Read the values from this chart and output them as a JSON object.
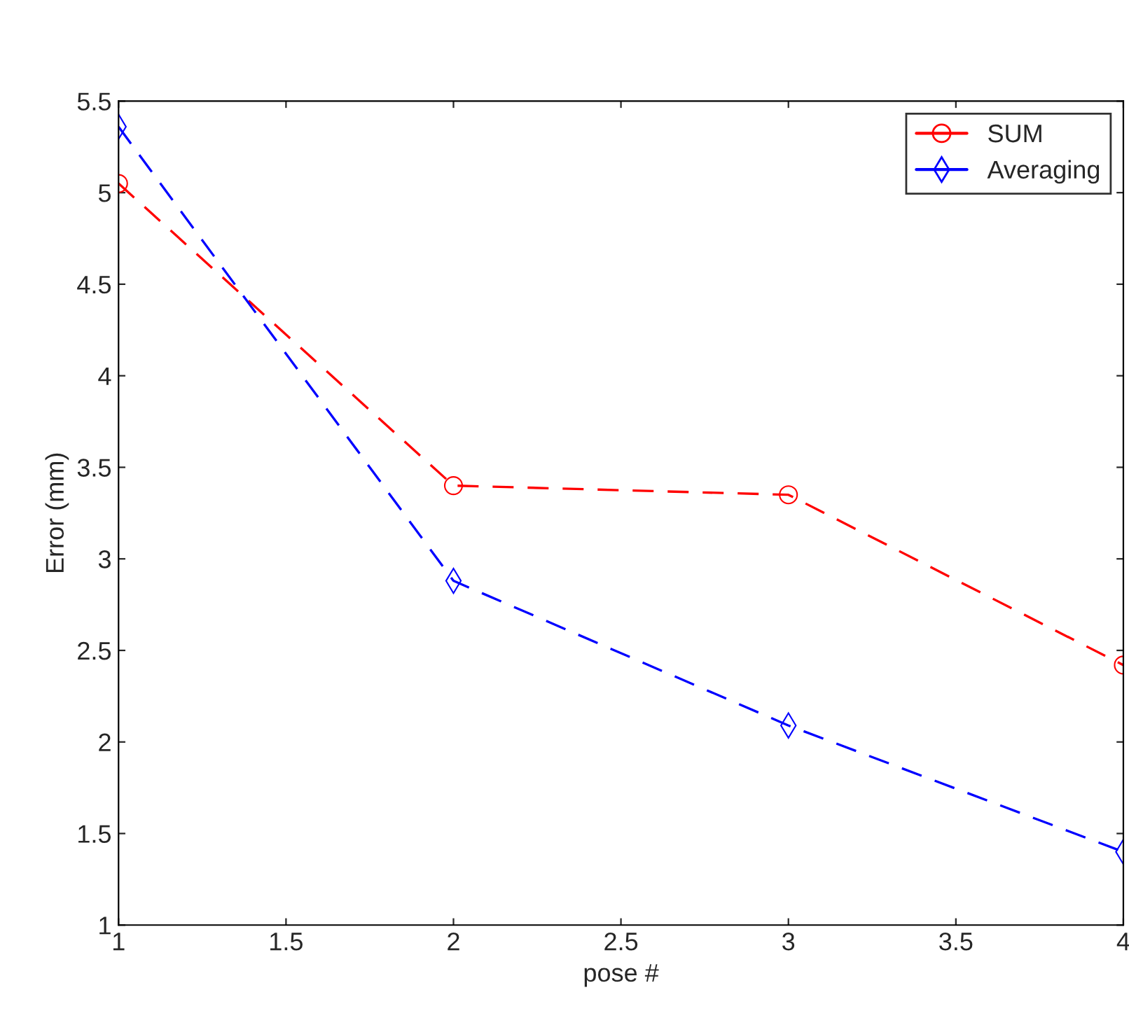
{
  "chart_data": {
    "type": "line",
    "xlabel": "pose #",
    "ylabel": "Error (mm)",
    "x": [
      1,
      2,
      3,
      4
    ],
    "series": [
      {
        "name": "SUM",
        "color": "#ff0000",
        "marker": "circle",
        "line_style": "dashed",
        "values": [
          5.05,
          3.4,
          3.35,
          2.42
        ]
      },
      {
        "name": "Averaging",
        "color": "#0000ff",
        "marker": "diamond",
        "line_style": "dashed",
        "values": [
          5.36,
          2.88,
          2.09,
          1.4
        ]
      }
    ],
    "xlim": [
      1,
      4
    ],
    "xticks": [
      1,
      1.5,
      2,
      2.5,
      3,
      3.5,
      4
    ],
    "ylim": [
      1,
      5.5
    ],
    "yticks": [
      1,
      1.5,
      2,
      2.5,
      3,
      3.5,
      4,
      4.5,
      5,
      5.5
    ],
    "grid": false,
    "legend": "top right"
  }
}
